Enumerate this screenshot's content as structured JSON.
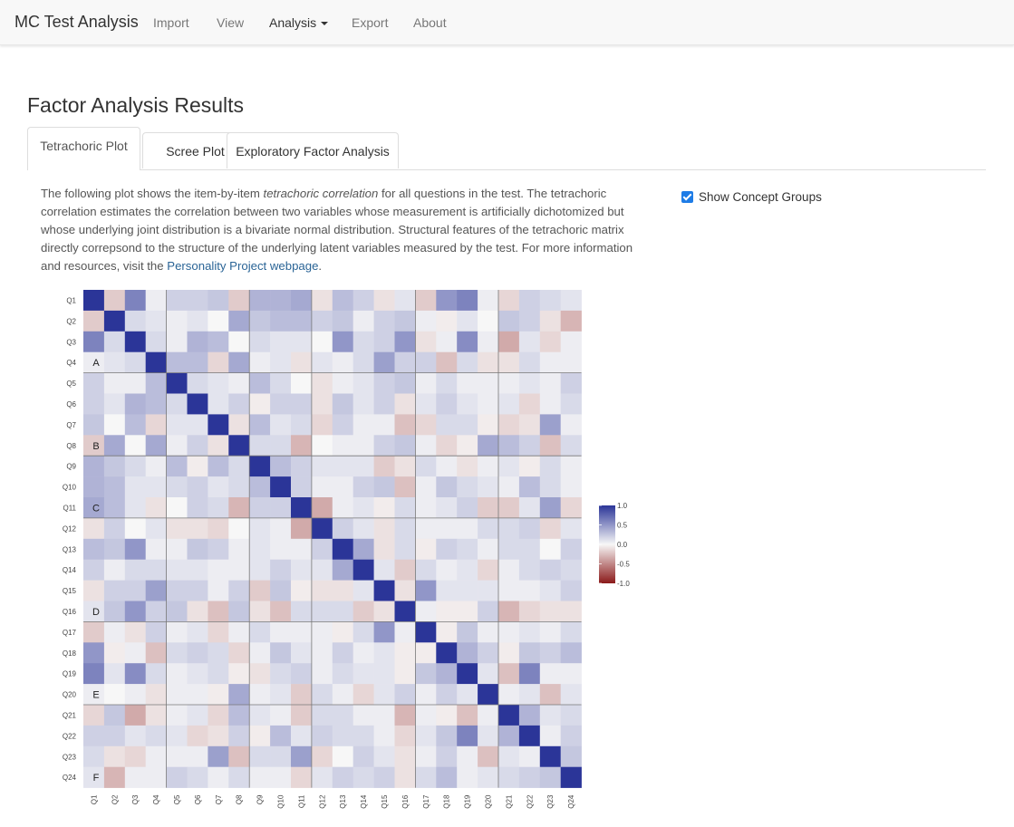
{
  "navbar": {
    "brand": "MC Test Analysis",
    "items": [
      {
        "label": "Import",
        "active": false
      },
      {
        "label": "View",
        "active": false
      },
      {
        "label": "Analysis",
        "active": true,
        "dropdown": true
      },
      {
        "label": "Export",
        "active": false
      },
      {
        "label": "About",
        "active": false
      }
    ]
  },
  "page_title": "Factor Analysis Results",
  "tabs": [
    {
      "label": "Tetrachoric Plot",
      "active": true
    },
    {
      "label": "Scree Plot",
      "active": false
    },
    {
      "label": "Exploratory Factor Analysis",
      "active": false
    }
  ],
  "description": {
    "part1": "The following plot shows the item-by-item ",
    "emphasis": "tetrachoric correlation",
    "part2": " for all questions in the test. The tetrachoric correlation estimates the correlation between two variables whose measurement is artificially dichotomized but whose underlying joint distribution is a bivariate normal distribution. Structural features of the tetrachoric matrix directly correpsond to the structure of the underlying latent variables measured by the test. For more information and resources, visit the ",
    "link": "Personality Project webpage",
    "part3": "."
  },
  "concept_groups_checkbox": {
    "label": "Show Concept Groups",
    "checked": true
  },
  "colors": {
    "positive": "#2b3598",
    "neutral": "#f7f7f7",
    "negative": "#8b1a1a"
  },
  "chart_data": {
    "type": "heatmap",
    "title": "",
    "xlabel": "",
    "ylabel": "",
    "items": [
      "Q1",
      "Q2",
      "Q3",
      "Q4",
      "Q5",
      "Q6",
      "Q7",
      "Q8",
      "Q9",
      "Q10",
      "Q11",
      "Q12",
      "Q13",
      "Q14",
      "Q15",
      "Q16",
      "Q17",
      "Q18",
      "Q19",
      "Q20",
      "Q21",
      "Q22",
      "Q23",
      "Q24"
    ],
    "concept_groups": [
      {
        "label": "A",
        "items": [
          "Q1",
          "Q2",
          "Q3",
          "Q4"
        ]
      },
      {
        "label": "B",
        "items": [
          "Q5",
          "Q6",
          "Q7",
          "Q8"
        ]
      },
      {
        "label": "C",
        "items": [
          "Q9",
          "Q10",
          "Q11"
        ]
      },
      {
        "label": "D",
        "items": [
          "Q12",
          "Q13",
          "Q14",
          "Q15",
          "Q16"
        ]
      },
      {
        "label": "E",
        "items": [
          "Q17",
          "Q18",
          "Q19",
          "Q20"
        ]
      },
      {
        "label": "F",
        "items": [
          "Q21",
          "Q22",
          "Q23",
          "Q24"
        ]
      }
    ],
    "color_range": [
      -1,
      1
    ],
    "legend_ticks": [
      "1.0",
      "0.5",
      "0.0",
      "-0.5",
      "-1.0"
    ],
    "legend_position": "right",
    "upper_triangle": [
      [
        -0.2,
        0.6,
        0.05,
        0.2,
        0.2,
        0.25,
        -0.2,
        0.35,
        0.35,
        0.4,
        -0.1,
        0.3,
        0.2,
        -0.1,
        0.1,
        -0.2,
        0.5,
        0.6,
        0.05,
        -0.15,
        0.2,
        0.15,
        0.1
      ],
      [
        0.15,
        0.1,
        0.05,
        0.1,
        0.0,
        0.4,
        0.25,
        0.3,
        0.3,
        0.2,
        0.25,
        0.05,
        0.2,
        0.25,
        0.05,
        -0.05,
        0.1,
        0.0,
        0.25,
        0.2,
        -0.1,
        -0.3,
        0.2
      ],
      [
        0.15,
        0.05,
        0.35,
        0.3,
        0.0,
        0.15,
        0.1,
        0.1,
        0.0,
        0.5,
        0.15,
        0.2,
        0.5,
        -0.1,
        0.05,
        0.55,
        0.05,
        -0.35,
        0.1,
        -0.15,
        0.05
      ],
      [
        0.3,
        0.3,
        -0.15,
        0.4,
        0.05,
        0.1,
        -0.1,
        0.1,
        0.05,
        0.15,
        0.45,
        0.2,
        0.2,
        -0.25,
        0.15,
        -0.1,
        -0.1,
        0.15,
        0.05,
        0.05,
        0.2
      ],
      [
        0.15,
        0.1,
        0.05,
        0.3,
        0.15,
        0.0,
        -0.1,
        0.05,
        0.1,
        0.2,
        0.25,
        0.05,
        0.15,
        0.05,
        0.05,
        0.05,
        0.1,
        0.05,
        0.2,
        0.1
      ],
      [
        0.1,
        0.2,
        -0.05,
        0.2,
        0.2,
        -0.1,
        0.25,
        0.1,
        0.2,
        -0.1,
        0.1,
        0.2,
        0.1,
        0.05,
        0.1,
        -0.15,
        0.05,
        0.15,
        0.05
      ],
      [
        -0.1,
        0.3,
        0.1,
        0.15,
        -0.15,
        0.2,
        0.05,
        0.05,
        -0.25,
        -0.15,
        0.15,
        0.15,
        -0.05,
        -0.15,
        -0.1,
        0.45,
        0.05
      ],
      [
        0.15,
        0.15,
        -0.3,
        0.0,
        0.05,
        0.05,
        0.2,
        0.25,
        0.05,
        -0.15,
        -0.05,
        0.4,
        0.3,
        0.2,
        -0.25,
        0.15
      ],
      [
        0.3,
        0.2,
        0.1,
        0.1,
        0.1,
        -0.2,
        -0.1,
        0.15,
        0.05,
        -0.1,
        0.05,
        0.1,
        -0.05,
        0.15,
        0.05
      ],
      [
        0.2,
        0.05,
        0.05,
        0.2,
        0.25,
        -0.25,
        0.05,
        0.25,
        0.15,
        0.1,
        0.05,
        0.3,
        0.15,
        0.05
      ],
      [
        -0.35,
        0.05,
        0.1,
        -0.05,
        0.15,
        0.05,
        0.1,
        0.2,
        -0.2,
        -0.2,
        0.1,
        0.45,
        -0.15
      ],
      [
        0.2,
        0.1,
        -0.1,
        0.15,
        0.05,
        0.05,
        0.05,
        0.15,
        0.15,
        0.2,
        -0.15,
        0.1
      ],
      [
        0.4,
        -0.1,
        0.15,
        -0.05,
        0.2,
        0.15,
        0.05,
        0.15,
        0.15,
        0.0,
        0.2
      ],
      [
        0.1,
        -0.2,
        0.15,
        0.05,
        0.1,
        -0.15,
        0.05,
        0.15,
        0.2,
        0.15
      ],
      [
        -0.1,
        0.5,
        0.1,
        0.1,
        0.1,
        0.05,
        0.05,
        0.1,
        0.2
      ],
      [
        0.05,
        -0.05,
        -0.05,
        0.2,
        -0.3,
        -0.15,
        -0.1,
        -0.1
      ],
      [
        -0.05,
        0.25,
        0.05,
        0.05,
        0.1,
        0.05,
        0.15
      ],
      [
        0.35,
        0.2,
        -0.05,
        0.25,
        0.2,
        0.3
      ],
      [
        0.1,
        -0.25,
        0.6,
        0.05,
        0.05
      ],
      [
        0.05,
        0.1,
        -0.25,
        0.1
      ],
      [
        0.35,
        0.1,
        0.15
      ],
      [
        0.05,
        0.2
      ],
      [
        0.25
      ]
    ]
  }
}
